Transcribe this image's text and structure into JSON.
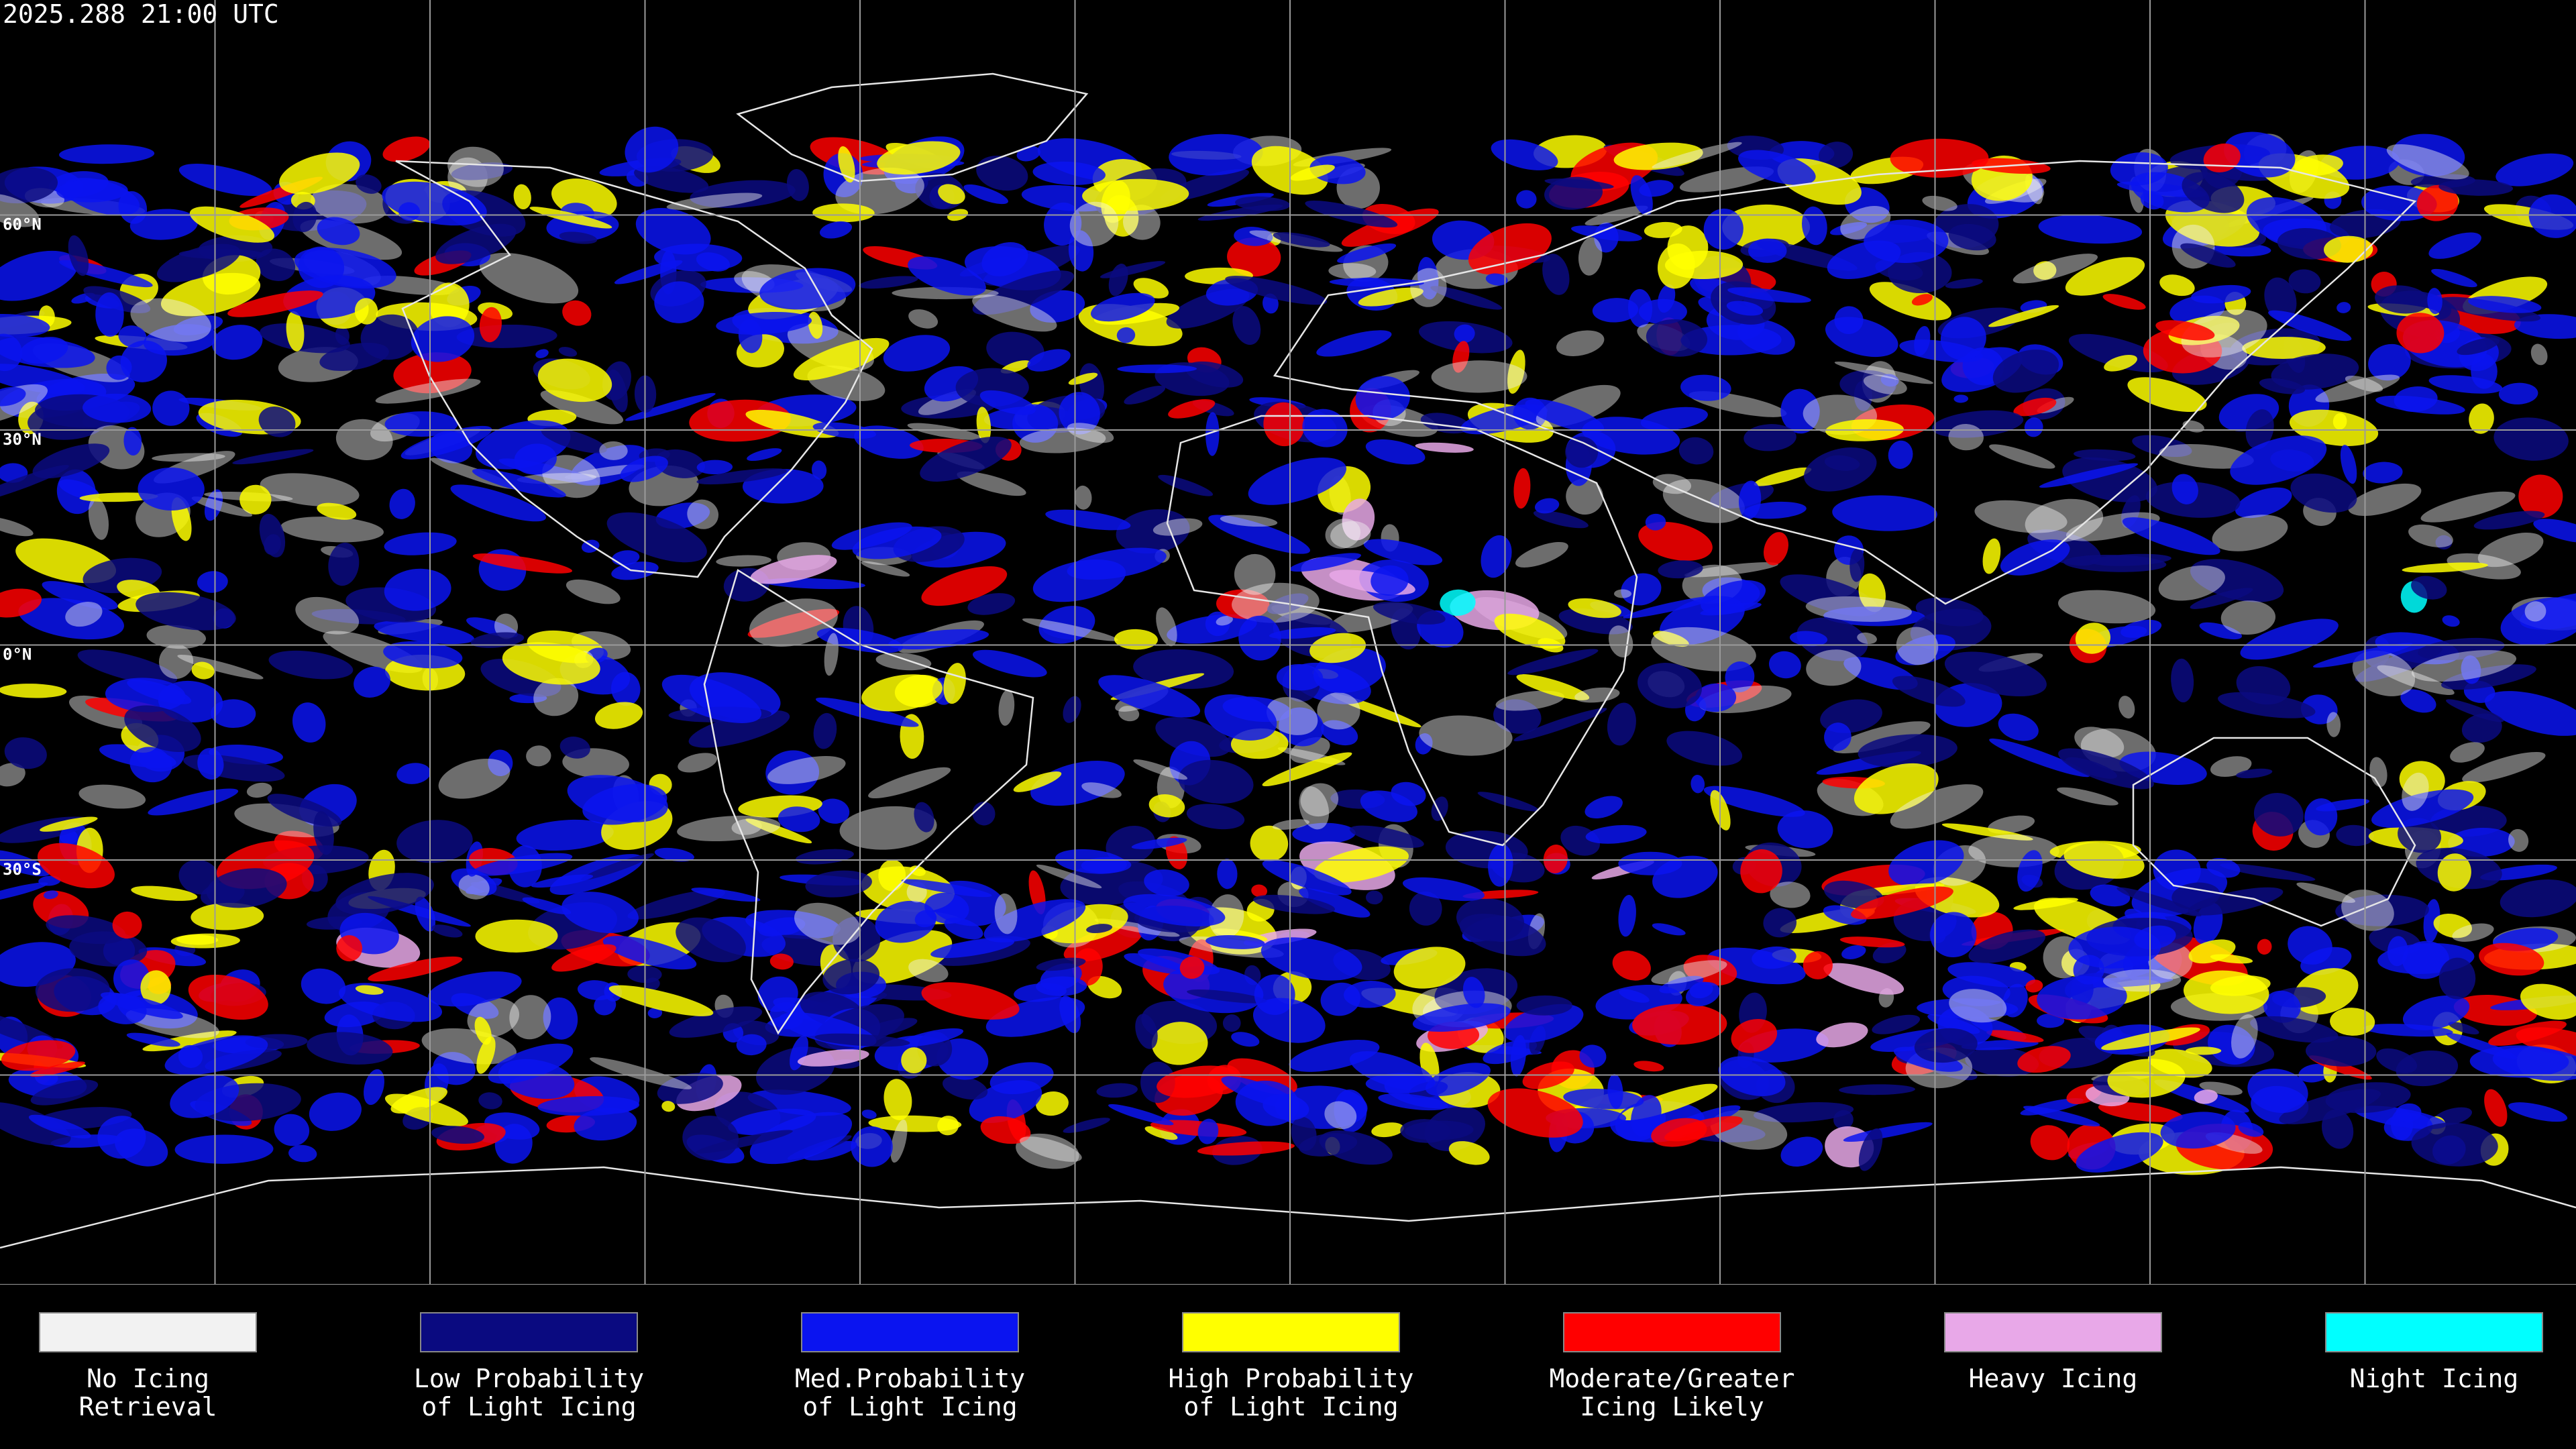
{
  "timestamp": "2025.288 21:00 UTC",
  "latitude_labels": [
    "60°N",
    "30°N",
    "0°N",
    "30°S"
  ],
  "legend": [
    {
      "lines": [
        "No Icing",
        "Retrieval"
      ],
      "color": "#f2f2f2"
    },
    {
      "lines": [
        "Low Probability",
        "of Light Icing"
      ],
      "color": "#0a0a80"
    },
    {
      "lines": [
        "Med.Probability",
        "of Light Icing"
      ],
      "color": "#0a14f0"
    },
    {
      "lines": [
        "High Probability",
        "of Light Icing"
      ],
      "color": "#ffff00"
    },
    {
      "lines": [
        "Moderate/Greater",
        "Icing Likely"
      ],
      "color": "#ff0000"
    },
    {
      "lines": [
        "Heavy Icing"
      ],
      "color": "#e8a8e8"
    },
    {
      "lines": [
        "Night Icing"
      ],
      "color": "#00ffff"
    }
  ]
}
